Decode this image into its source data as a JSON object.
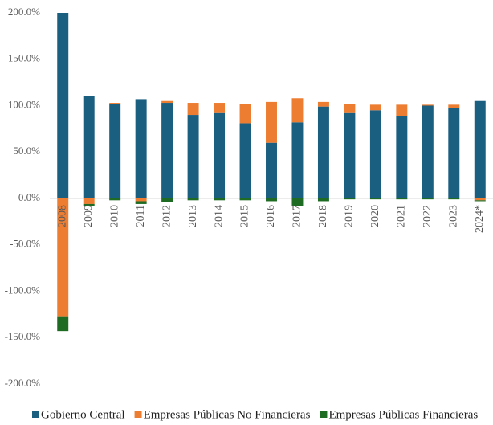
{
  "chart_data": {
    "type": "stacked_bar",
    "categories": [
      "2008",
      "2009",
      "2010",
      "2011",
      "2012",
      "2013",
      "2014",
      "2015",
      "2016",
      "2017",
      "2018",
      "2019",
      "2020",
      "2021",
      "2022",
      "2023",
      "2024*"
    ],
    "series": [
      {
        "name": "Gobierno Central",
        "color": "#1a5e80",
        "values": [
          200,
          110,
          102,
          107,
          103,
          90,
          92,
          81,
          60,
          82,
          99,
          92,
          95,
          89,
          100,
          97,
          105
        ]
      },
      {
        "name": "Empresas Públicas No Financieras",
        "color": "#ed7d31",
        "values": [
          -127,
          -6,
          1,
          -3,
          2,
          13,
          11,
          21,
          44,
          26,
          5,
          10,
          6,
          12,
          1,
          4,
          -2
        ]
      },
      {
        "name": "Empresas Públicas Financieras",
        "color": "#1e6b24",
        "values": [
          -16,
          -2,
          -2,
          -3,
          -4,
          -2,
          -2,
          -2,
          -3,
          -8,
          -3,
          -1,
          -1,
          -1,
          -1,
          -1,
          -1
        ]
      }
    ],
    "ylim": [
      -200,
      200
    ],
    "yticks": [
      {
        "value": -200,
        "label": "-200.0%"
      },
      {
        "value": -150,
        "label": "-150.0%"
      },
      {
        "value": -100,
        "label": "-100.0%"
      },
      {
        "value": -50,
        "label": "-50.0%"
      },
      {
        "value": 0,
        "label": "0.0%"
      },
      {
        "value": 50,
        "label": "50.0%"
      },
      {
        "value": 100,
        "label": "100.0%"
      },
      {
        "value": 150,
        "label": "150.0%"
      },
      {
        "value": 200,
        "label": "200.0%"
      }
    ],
    "legend": "bottom"
  }
}
